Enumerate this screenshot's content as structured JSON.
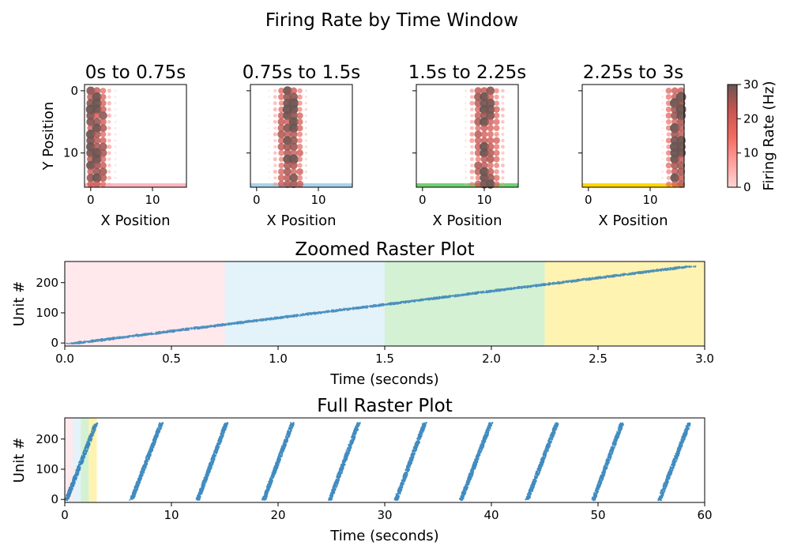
{
  "figure": {
    "title": "Firing Rate by Time Window"
  },
  "chart_data": [
    {
      "type": "scatter",
      "title": "0s to 0.75s",
      "xlabel": "X Position",
      "ylabel": "Y Position",
      "xlim": [
        -1,
        15.5
      ],
      "ylim": [
        15.5,
        -1
      ],
      "xticks": [
        0,
        10
      ],
      "yticks": [
        0,
        10
      ],
      "window_color": "#ffb6c1",
      "columns": [
        {
          "x": 0,
          "mean_rate": 26
        },
        {
          "x": 1,
          "mean_rate": 27
        },
        {
          "x": 2,
          "mean_rate": 22
        },
        {
          "x": 3,
          "mean_rate": 10
        },
        {
          "x": 4,
          "mean_rate": 3
        }
      ]
    },
    {
      "type": "scatter",
      "title": "0.75s to 1.5s",
      "xlabel": "X Position",
      "ylabel": "",
      "xlim": [
        -1,
        15.5
      ],
      "ylim": [
        15.5,
        -1
      ],
      "xticks": [
        0,
        10
      ],
      "yticks": [
        0,
        10
      ],
      "window_color": "#a6d4ea",
      "columns": [
        {
          "x": 2,
          "mean_rate": 2
        },
        {
          "x": 3,
          "mean_rate": 9
        },
        {
          "x": 4,
          "mean_rate": 20
        },
        {
          "x": 5,
          "mean_rate": 27
        },
        {
          "x": 6,
          "mean_rate": 27
        },
        {
          "x": 7,
          "mean_rate": 18
        },
        {
          "x": 8,
          "mean_rate": 5
        }
      ]
    },
    {
      "type": "scatter",
      "title": "1.5s to 2.25s",
      "xlabel": "X Position",
      "ylabel": "",
      "xlim": [
        -1,
        15.5
      ],
      "ylim": [
        15.5,
        -1
      ],
      "xticks": [
        0,
        10
      ],
      "yticks": [
        0,
        10
      ],
      "window_color": "#70d270",
      "columns": [
        {
          "x": 7,
          "mean_rate": 3
        },
        {
          "x": 8,
          "mean_rate": 11
        },
        {
          "x": 9,
          "mean_rate": 21
        },
        {
          "x": 10,
          "mean_rate": 26
        },
        {
          "x": 11,
          "mean_rate": 25
        },
        {
          "x": 12,
          "mean_rate": 18
        },
        {
          "x": 13,
          "mean_rate": 8
        }
      ]
    },
    {
      "type": "scatter",
      "title": "2.25s to 3s",
      "xlabel": "X Position",
      "ylabel": "",
      "xlim": [
        -1,
        15.5
      ],
      "ylim": [
        15.5,
        -1
      ],
      "xticks": [
        0,
        10
      ],
      "yticks": [
        0,
        10
      ],
      "window_color": "#ffd700",
      "columns": [
        {
          "x": 12,
          "mean_rate": 3
        },
        {
          "x": 13,
          "mean_rate": 15
        },
        {
          "x": 14,
          "mean_rate": 27
        },
        {
          "x": 15,
          "mean_rate": 29
        }
      ]
    },
    {
      "type": "colorbar",
      "label": "Firing Rate (Hz)",
      "range": [
        0,
        30
      ],
      "ticks": [
        0,
        10,
        20,
        30
      ],
      "colors": [
        "#ffd5d5",
        "#ff9f9a",
        "#f06a60",
        "#c85550",
        "#6b5552"
      ]
    },
    {
      "type": "scatter",
      "title": "Zoomed Raster Plot",
      "xlabel": "Time (seconds)",
      "ylabel": "Unit #",
      "xlim": [
        0,
        3.0
      ],
      "ylim": [
        -10,
        270
      ],
      "xticks": [
        0.0,
        0.5,
        1.0,
        1.5,
        2.0,
        2.5,
        3.0
      ],
      "xtick_labels": [
        "0.0",
        "0.5",
        "1.0",
        "1.5",
        "2.0",
        "2.5",
        "3.0"
      ],
      "yticks": [
        0,
        100,
        200
      ],
      "windows": [
        {
          "start": 0,
          "end": 0.75,
          "color": "#ffb6c1"
        },
        {
          "start": 0.75,
          "end": 1.5,
          "color": "#a6d4ea"
        },
        {
          "start": 1.5,
          "end": 2.25,
          "color": "#70d270"
        },
        {
          "start": 2.25,
          "end": 3.0,
          "color": "#ffd700"
        }
      ],
      "sweep": {
        "t_start": 0.03,
        "t_end": 2.93,
        "unit_start": 0,
        "unit_end": 256,
        "jitter_s": 0.06
      },
      "point_color": "#2f7fb6"
    },
    {
      "type": "scatter",
      "title": "Full Raster Plot",
      "xlabel": "Time (seconds)",
      "ylabel": "Unit #",
      "xlim": [
        0,
        60
      ],
      "ylim": [
        -10,
        270
      ],
      "xticks": [
        0,
        10,
        20,
        30,
        40,
        50,
        60
      ],
      "yticks": [
        0,
        100,
        200
      ],
      "windows": [
        {
          "start": 0,
          "end": 0.75,
          "color": "#ffb6c1"
        },
        {
          "start": 0.75,
          "end": 1.5,
          "color": "#a6d4ea"
        },
        {
          "start": 1.5,
          "end": 2.25,
          "color": "#70d270"
        },
        {
          "start": 2.25,
          "end": 3.0,
          "color": "#ffd700"
        }
      ],
      "sweeps": [
        {
          "t_start": 0.1,
          "t_end": 2.9
        },
        {
          "t_start": 6.2,
          "t_end": 9.0
        },
        {
          "t_start": 12.4,
          "t_end": 15.1
        },
        {
          "t_start": 18.6,
          "t_end": 21.3
        },
        {
          "t_start": 24.8,
          "t_end": 27.5
        },
        {
          "t_start": 31.0,
          "t_end": 33.7
        },
        {
          "t_start": 37.1,
          "t_end": 39.9
        },
        {
          "t_start": 43.3,
          "t_end": 46.1
        },
        {
          "t_start": 49.5,
          "t_end": 52.2
        },
        {
          "t_start": 55.7,
          "t_end": 58.5
        }
      ],
      "point_color": "#1f77b4"
    }
  ]
}
